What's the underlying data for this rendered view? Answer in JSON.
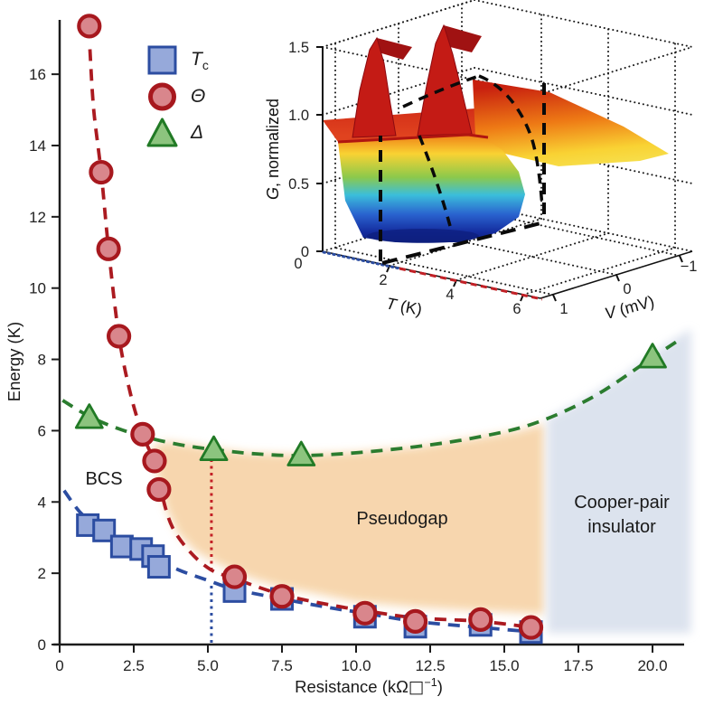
{
  "figure": {
    "background": "#ffffff"
  },
  "legend": {
    "items": [
      {
        "name": "tc",
        "marker": "square",
        "label_main": "T",
        "label_sub": "c"
      },
      {
        "name": "theta",
        "marker": "circle",
        "label": "Θ"
      },
      {
        "name": "delta",
        "marker": "triangle",
        "label": "Δ"
      }
    ]
  },
  "chart_data": [
    {
      "id": "main",
      "type": "scatter",
      "xlabel_pre": "Resistance (kΩ",
      "xlabel_square": "□",
      "xlabel_sup": "−1",
      "xlabel_post": ")",
      "ylabel": "Energy (K)",
      "xlim": [
        0,
        21
      ],
      "ylim": [
        0,
        17.5
      ],
      "x_ticks": [
        "0",
        "2.5",
        "5.0",
        "7.5",
        "10.0",
        "12.5",
        "15.0",
        "17.5",
        "20.0"
      ],
      "y_ticks": [
        "0",
        "2",
        "4",
        "6",
        "8",
        "10",
        "12",
        "14",
        "16"
      ],
      "series": [
        {
          "name": "Tc",
          "marker": "square",
          "fill": "#96a9da",
          "edge": "#2c4da1",
          "points": [
            [
              0.95,
              3.35
            ],
            [
              1.5,
              3.2
            ],
            [
              2.1,
              2.75
            ],
            [
              2.75,
              2.68
            ],
            [
              3.15,
              2.48
            ],
            [
              3.35,
              2.18
            ],
            [
              5.9,
              1.5
            ],
            [
              7.5,
              1.28
            ],
            [
              10.3,
              0.78
            ],
            [
              12.0,
              0.5
            ],
            [
              14.2,
              0.55
            ],
            [
              15.9,
              0.35
            ]
          ]
        },
        {
          "name": "Θ",
          "marker": "circle",
          "fill": "#d9868c",
          "edge": "#a7181e",
          "points": [
            [
              1.0,
              17.35
            ],
            [
              1.4,
              13.25
            ],
            [
              1.65,
              11.1
            ],
            [
              2.0,
              8.65
            ],
            [
              2.8,
              5.9
            ],
            [
              3.2,
              5.15
            ],
            [
              3.35,
              4.35
            ],
            [
              5.9,
              1.9
            ],
            [
              7.5,
              1.35
            ],
            [
              10.3,
              0.88
            ],
            [
              12.0,
              0.65
            ],
            [
              14.2,
              0.7
            ],
            [
              15.9,
              0.48
            ]
          ]
        },
        {
          "name": "Δ",
          "marker": "triangle",
          "fill": "#8cc47e",
          "edge": "#217a25",
          "points": [
            [
              1.0,
              6.35
            ],
            [
              5.2,
              5.45
            ],
            [
              8.15,
              5.3
            ],
            [
              20.0,
              8.05
            ]
          ]
        }
      ],
      "curves": [
        {
          "name": "bcs-fit",
          "color": "#2c4da1",
          "points": [
            [
              0.15,
              4.32
            ],
            [
              0.7,
              3.7
            ],
            [
              1.3,
              3.3
            ],
            [
              2.1,
              2.85
            ],
            [
              3.0,
              2.5
            ],
            [
              4.0,
              2.1
            ],
            [
              5.0,
              1.8
            ],
            [
              5.9,
              1.55
            ],
            [
              7.5,
              1.28
            ],
            [
              9.2,
              1.02
            ],
            [
              10.3,
              0.88
            ],
            [
              12.0,
              0.65
            ],
            [
              14.2,
              0.48
            ],
            [
              16.3,
              0.33
            ]
          ]
        },
        {
          "name": "theta-fit",
          "color": "#ab1a20",
          "points": [
            [
              1.02,
              16.7
            ],
            [
              1.15,
              15.0
            ],
            [
              1.4,
              13.25
            ],
            [
              1.65,
              11.1
            ],
            [
              2.0,
              8.65
            ],
            [
              2.4,
              7.0
            ],
            [
              2.8,
              5.9
            ],
            [
              3.2,
              5.1
            ],
            [
              3.45,
              4.2
            ],
            [
              3.8,
              3.3
            ],
            [
              4.4,
              2.6
            ],
            [
              5.1,
              2.1
            ],
            [
              5.9,
              1.85
            ],
            [
              7.5,
              1.4
            ],
            [
              9.2,
              1.1
            ],
            [
              10.3,
              0.95
            ],
            [
              12.0,
              0.75
            ],
            [
              14.2,
              0.65
            ],
            [
              16.2,
              0.45
            ]
          ]
        },
        {
          "name": "delta-fit",
          "color": "#2b7c2f",
          "points": [
            [
              0.1,
              6.85
            ],
            [
              1.0,
              6.4
            ],
            [
              2.0,
              6.05
            ],
            [
              3.0,
              5.8
            ],
            [
              4.1,
              5.6
            ],
            [
              5.2,
              5.47
            ],
            [
              6.6,
              5.35
            ],
            [
              8.15,
              5.3
            ],
            [
              10.0,
              5.38
            ],
            [
              12.0,
              5.55
            ],
            [
              14.0,
              5.8
            ],
            [
              16.0,
              6.2
            ],
            [
              18.0,
              6.95
            ],
            [
              20.0,
              8.05
            ],
            [
              21.0,
              8.6
            ]
          ]
        }
      ],
      "vlines": [
        {
          "name": "tc-marker-line",
          "x": 5.12,
          "y1": 0.05,
          "y2": 1.72,
          "color": "#2c4da1"
        },
        {
          "name": "theta-marker-line",
          "x": 5.12,
          "y1": 2.08,
          "y2": 5.3,
          "color": "#c32026"
        }
      ],
      "regions": [
        {
          "name": "pseudogap",
          "color": "#f7d5ab",
          "polygon": [
            [
              3.1,
              5.55
            ],
            [
              3.35,
              4.6
            ],
            [
              3.6,
              3.8
            ],
            [
              4.0,
              3.1
            ],
            [
              4.6,
              2.6
            ],
            [
              5.5,
              2.2
            ],
            [
              6.5,
              1.85
            ],
            [
              7.5,
              1.6
            ],
            [
              8.5,
              1.45
            ],
            [
              10.0,
              1.2
            ],
            [
              12.0,
              1.05
            ],
            [
              14.0,
              0.95
            ],
            [
              16.35,
              0.85
            ],
            [
              16.35,
              6.2
            ],
            [
              15.5,
              6.0
            ],
            [
              14.0,
              5.8
            ],
            [
              12.0,
              5.55
            ],
            [
              10.0,
              5.4
            ],
            [
              8.15,
              5.33
            ],
            [
              6.5,
              5.37
            ],
            [
              5.2,
              5.5
            ],
            [
              4.5,
              5.6
            ],
            [
              3.6,
              5.7
            ]
          ]
        },
        {
          "name": "cooper-pair-insulator",
          "color": "#dbe2ee",
          "polygon": [
            [
              16.45,
              0.32
            ],
            [
              16.45,
              6.35
            ],
            [
              17.6,
              6.85
            ],
            [
              19.0,
              7.55
            ],
            [
              20.5,
              8.45
            ],
            [
              21.3,
              8.85
            ],
            [
              21.3,
              0.32
            ]
          ]
        }
      ],
      "labels": {
        "bcs": "BCS",
        "pseudogap": "Pseudogap",
        "insulator_1": "Cooper-pair",
        "insulator_2": "insulator"
      }
    },
    {
      "id": "inset",
      "type": "surface3d",
      "description": "Normalized tunnelling conductance G(V,T) surface: deep gap at V=0 for T below ~2.3 K with coherence peaks, filling to flat G=1 plateau at higher T",
      "colormap": "jet",
      "zlabel_italic": "G",
      "zlabel_rest": ", normalized",
      "xlabel_italic": "T",
      "xlabel_rest": " (K)",
      "ylabel_italic": "V",
      "ylabel_rest": " (mV)",
      "z_ticks": [
        "0",
        "0.5",
        "1.0",
        "1.5"
      ],
      "t_ticks": [
        "0",
        "2",
        "4",
        "6"
      ],
      "v_ticks": [
        "1",
        "0",
        "−1"
      ],
      "z_range": [
        0,
        1.5
      ],
      "t_range": [
        0,
        6.5
      ],
      "v_range": [
        -1.2,
        1.2
      ]
    }
  ]
}
